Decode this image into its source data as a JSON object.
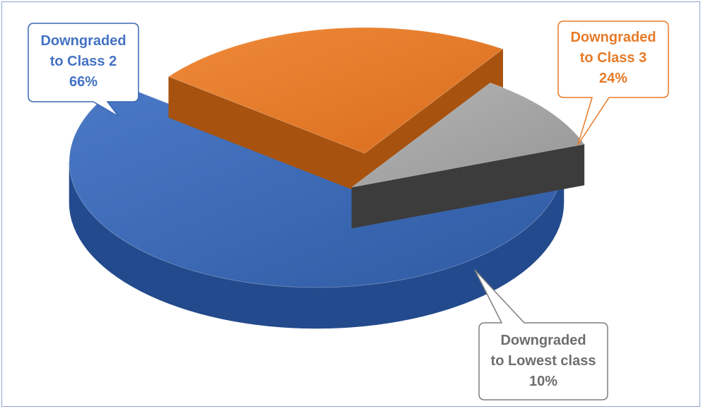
{
  "chart_data": {
    "type": "pie",
    "title": "",
    "style": "3d-exploded",
    "slices": [
      {
        "line1": "Downgraded",
        "line2": "to Class 2",
        "value": 66,
        "value_label": "66%",
        "color": "#3a67b4",
        "side_color": "#234a8c"
      },
      {
        "line1": "Downgraded",
        "line2": "to Class 3",
        "value": 24,
        "value_label": "24%",
        "color": "#e57a28",
        "side_color": "#a8520f"
      },
      {
        "line1": "Downgraded",
        "line2": "to Lowest class",
        "value": 10,
        "value_label": "10%",
        "color": "#a5a5a5",
        "side_color": "#3c3c3c"
      }
    ],
    "legend": "none",
    "frame_color": "#8ea4cf"
  }
}
